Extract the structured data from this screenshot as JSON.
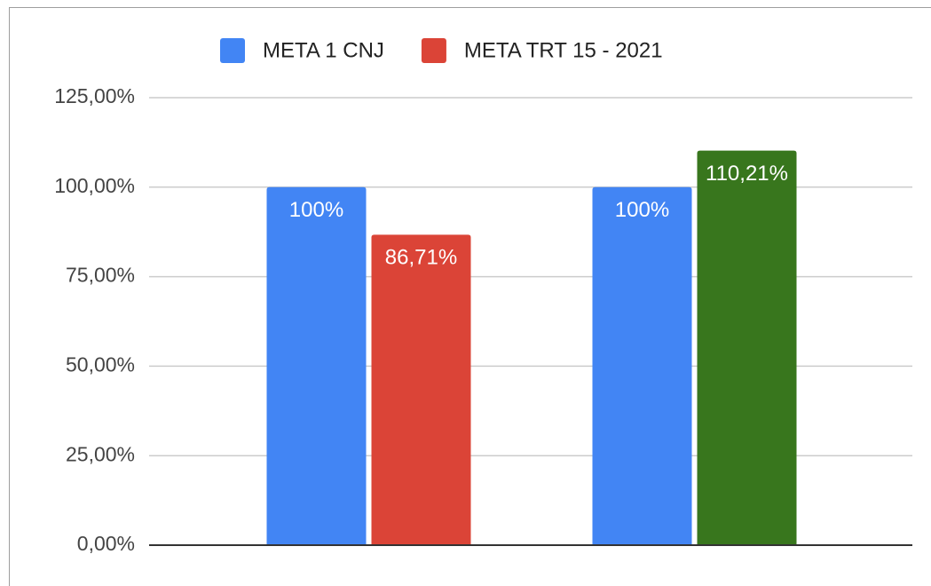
{
  "chart_data": {
    "type": "bar",
    "categories": [
      null,
      null
    ],
    "series": [
      {
        "name": "META 1 CNJ",
        "color": "#4285f4",
        "values": [
          100,
          100
        ],
        "value_labels": [
          "100%",
          "100%"
        ]
      },
      {
        "name": "META TRT 15 - 2021",
        "color": "#db4437",
        "colors": [
          "#db4437",
          "#38761d"
        ],
        "values": [
          86.71,
          110.21
        ],
        "value_labels": [
          "86,71%",
          "110,21%"
        ]
      }
    ],
    "ylim": [
      0,
      125
    ],
    "yticks": [
      {
        "value": 0,
        "label": "0,00%"
      },
      {
        "value": 25,
        "label": "25,00%"
      },
      {
        "value": 50,
        "label": "50,00%"
      },
      {
        "value": 75,
        "label": "75,00%"
      },
      {
        "value": 100,
        "label": "100,00%"
      },
      {
        "value": 125,
        "label": "125,00%"
      }
    ],
    "grid": true,
    "legend": "top"
  }
}
